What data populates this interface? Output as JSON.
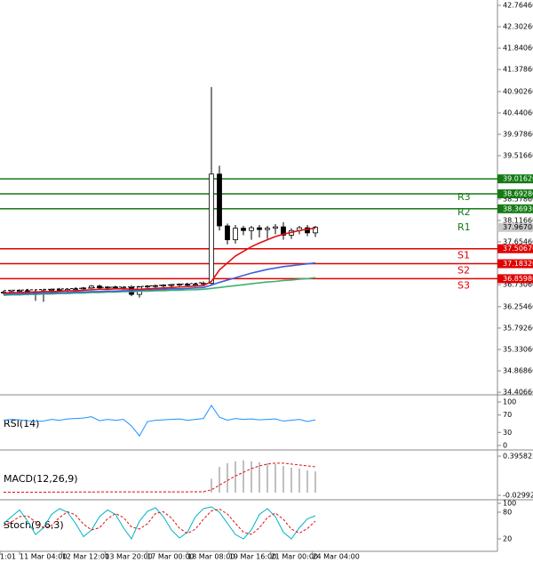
{
  "chart_data": [
    {
      "type": "candlestick",
      "open": [
        36.55,
        36.57,
        36.58,
        36.6,
        36.56,
        36.58,
        36.6,
        36.62,
        36.6,
        36.63,
        36.64,
        36.66,
        36.7,
        36.66,
        36.68,
        36.66,
        36.67,
        36.52,
        36.68,
        36.7,
        36.71,
        36.72,
        36.73,
        36.74,
        36.72,
        36.74,
        36.76,
        39.12,
        38.0,
        37.7,
        37.95,
        37.9,
        37.96,
        37.92,
        37.95,
        37.98,
        37.8,
        37.9,
        37.96,
        37.85
      ],
      "high": [
        36.6,
        36.62,
        36.63,
        36.64,
        36.62,
        36.64,
        36.65,
        36.66,
        36.65,
        36.67,
        36.68,
        36.72,
        36.73,
        36.7,
        36.71,
        36.7,
        36.72,
        36.7,
        36.72,
        36.73,
        36.74,
        36.75,
        36.76,
        36.77,
        36.76,
        36.8,
        41.0,
        39.3,
        38.05,
        38.02,
        38.0,
        38.0,
        38.02,
        38.0,
        38.04,
        38.08,
        37.95,
        38.0,
        38.02,
        38.0
      ],
      "low": [
        36.52,
        36.54,
        36.55,
        36.5,
        36.38,
        36.36,
        36.56,
        36.58,
        36.57,
        36.59,
        36.6,
        36.62,
        36.64,
        36.62,
        36.64,
        36.62,
        36.48,
        36.45,
        36.64,
        36.66,
        36.67,
        36.68,
        36.69,
        36.7,
        36.68,
        36.7,
        36.72,
        37.9,
        37.6,
        37.62,
        37.8,
        37.7,
        37.75,
        37.72,
        37.82,
        37.7,
        37.72,
        37.82,
        37.78,
        37.76
      ],
      "close": [
        36.57,
        36.58,
        36.6,
        36.56,
        36.58,
        36.6,
        36.62,
        36.6,
        36.63,
        36.64,
        36.66,
        36.7,
        36.66,
        36.68,
        36.66,
        36.67,
        36.52,
        36.68,
        36.7,
        36.71,
        36.72,
        36.73,
        36.74,
        36.72,
        36.74,
        36.76,
        39.12,
        38.0,
        37.7,
        37.95,
        37.9,
        37.96,
        37.92,
        37.95,
        37.98,
        37.8,
        37.9,
        37.96,
        37.85,
        37.97
      ],
      "series": [
        {
          "color": "#000000",
          "dashed": true,
          "values": [
            36.6,
            36.61,
            36.61,
            36.62,
            36.62,
            36.63,
            36.63,
            36.64,
            36.64,
            36.65,
            36.65,
            36.66,
            36.67,
            36.67,
            36.68,
            36.68,
            36.68,
            36.69,
            36.7,
            36.71,
            36.72,
            36.73,
            36.74,
            36.75,
            36.76,
            36.78,
            null,
            null,
            null,
            null,
            null,
            null,
            null,
            null,
            null,
            null,
            null,
            null,
            null,
            null
          ]
        },
        {
          "color": "#3cb371",
          "values": [
            36.5,
            36.51,
            36.51,
            36.52,
            36.52,
            36.53,
            36.53,
            36.54,
            36.54,
            36.55,
            36.55,
            36.56,
            36.56,
            36.57,
            36.57,
            36.58,
            36.58,
            36.59,
            36.59,
            36.6,
            36.6,
            36.61,
            36.61,
            36.62,
            36.62,
            36.63,
            36.65,
            36.67,
            36.69,
            36.71,
            36.73,
            36.75,
            36.77,
            36.79,
            36.8,
            36.82,
            36.83,
            36.85,
            36.86,
            36.88
          ]
        },
        {
          "color": "#3f5fd9",
          "values": [
            36.52,
            36.53,
            36.53,
            36.54,
            36.54,
            36.55,
            36.55,
            36.56,
            36.56,
            36.57,
            36.57,
            36.58,
            36.58,
            36.59,
            36.59,
            36.6,
            36.6,
            36.61,
            36.62,
            36.62,
            36.63,
            36.64,
            36.64,
            36.65,
            36.66,
            36.67,
            36.72,
            36.78,
            36.83,
            36.88,
            36.93,
            36.98,
            37.02,
            37.06,
            37.09,
            37.12,
            37.14,
            37.16,
            37.18,
            37.2
          ]
        },
        {
          "color": "#e01010",
          "values": [
            36.55,
            36.56,
            36.56,
            36.57,
            36.57,
            36.58,
            36.58,
            36.59,
            36.6,
            36.6,
            36.61,
            36.62,
            36.63,
            36.63,
            36.64,
            36.64,
            36.63,
            36.63,
            36.64,
            36.65,
            36.66,
            36.67,
            36.68,
            36.69,
            36.7,
            36.71,
            36.8,
            37.05,
            37.2,
            37.35,
            37.45,
            37.55,
            37.63,
            37.7,
            37.77,
            37.82,
            37.86,
            37.9,
            37.93,
            37.95
          ]
        }
      ],
      "levels": [
        {
          "name": "R3",
          "value": 39.0162,
          "color": "#157a15"
        },
        {
          "name": "R2",
          "value": 38.6928,
          "color": "#157a15"
        },
        {
          "name": "R1",
          "value": 38.3693,
          "color": "#157a15"
        },
        {
          "name": "S1",
          "value": 37.5067,
          "color": "#e00000"
        },
        {
          "name": "S2",
          "value": 37.1832,
          "color": "#e00000"
        },
        {
          "name": "S3",
          "value": 36.8598,
          "color": "#e00000"
        }
      ],
      "level_labels": [
        "39.01620",
        "38.69280",
        "38.36930",
        "37.50670",
        "37.18320",
        "36.85980"
      ],
      "last": 37.96708,
      "ylim": [
        34.37,
        42.88
      ],
      "yticks": [
        {
          "value": 42.7646,
          "label": "42.76460"
        },
        {
          "value": 42.3026,
          "label": "42.30260"
        },
        {
          "value": 41.8406,
          "label": "41.84060"
        },
        {
          "value": 41.3786,
          "label": "41.37860"
        },
        {
          "value": 40.9026,
          "label": "40.90260"
        },
        {
          "value": 40.4406,
          "label": "40.44060"
        },
        {
          "value": 39.9786,
          "label": "39.97860"
        },
        {
          "value": 39.5166,
          "label": "39.51660"
        },
        {
          "value": 38.5786,
          "label": "38.57860"
        },
        {
          "value": 38.1166,
          "label": "38.11660"
        },
        {
          "value": 37.6546,
          "label": "37.65460"
        },
        {
          "value": 36.7306,
          "label": "36.73060"
        },
        {
          "value": 36.2546,
          "label": "36.25460"
        },
        {
          "value": 35.7926,
          "label": "35.79260"
        },
        {
          "value": 35.3306,
          "label": "35.33060"
        },
        {
          "value": 34.8686,
          "label": "34.86860"
        },
        {
          "value": 34.4066,
          "label": "34.40660"
        }
      ],
      "xticks": [
        {
          "value": -0.44,
          "label": "1:01"
        },
        {
          "value": 2,
          "label": "11 Mar 04:00"
        },
        {
          "value": 7.3,
          "label": "12 Mar 12:00"
        },
        {
          "value": 12.7,
          "label": "13 Mar 20:00"
        },
        {
          "value": 17.9,
          "label": "17 Mar 00:00"
        },
        {
          "value": 23,
          "label": "18 Mar 08:00"
        },
        {
          "value": 28.2,
          "label": "19 Mar 16:00"
        },
        {
          "value": 33.4,
          "label": "21 Mar 00:00"
        },
        {
          "value": 38.6,
          "label": "24 Mar 04:00"
        }
      ]
    },
    {
      "type": "line",
      "title": "RSI(14)",
      "series": [
        {
          "color": "#1e90ff",
          "values": [
            58,
            60,
            59,
            57,
            55,
            56,
            60,
            58,
            61,
            62,
            63,
            66,
            57,
            60,
            58,
            60,
            45,
            22,
            55,
            58,
            59,
            60,
            61,
            58,
            60,
            62,
            92,
            65,
            58,
            62,
            60,
            61,
            59,
            60,
            61,
            56,
            58,
            60,
            55,
            59
          ]
        }
      ],
      "ylim": [
        -8.2,
        110.2
      ],
      "yticks": [
        100,
        70,
        30,
        0
      ]
    },
    {
      "type": "macd",
      "title": "MACD(12,26,9)",
      "values": [
        0.004,
        0.004,
        0.005,
        0.004,
        0.004,
        0.005,
        0.005,
        0.006,
        0.006,
        0.006,
        0.007,
        0.008,
        0.007,
        0.007,
        0.007,
        0.007,
        0.005,
        0.006,
        0.007,
        0.007,
        0.008,
        0.008,
        0.009,
        0.009,
        0.009,
        0.01,
        0.15,
        0.28,
        0.32,
        0.34,
        0.35,
        0.34,
        0.33,
        0.32,
        0.31,
        0.29,
        0.27,
        0.26,
        0.24,
        0.23
      ],
      "series": [
        {
          "color": "#e01010",
          "dashed": true,
          "values": [
            0.004,
            0.004,
            0.004,
            0.004,
            0.004,
            0.004,
            0.005,
            0.005,
            0.005,
            0.006,
            0.006,
            0.006,
            0.007,
            0.007,
            0.007,
            0.007,
            0.007,
            0.007,
            0.007,
            0.007,
            0.007,
            0.008,
            0.008,
            0.008,
            0.009,
            0.009,
            0.03,
            0.08,
            0.13,
            0.18,
            0.22,
            0.26,
            0.29,
            0.31,
            0.32,
            0.32,
            0.31,
            0.3,
            0.29,
            0.28
          ]
        }
      ],
      "ylim": [
        -0.0687,
        0.4345
      ],
      "yticks": [
        0.395822,
        -0.029929
      ]
    },
    {
      "type": "stochastic",
      "title": "Stoch(9,6,3)",
      "series": [
        {
          "color": "#00b3c6",
          "values": [
            55,
            70,
            85,
            60,
            30,
            45,
            75,
            88,
            80,
            55,
            25,
            40,
            70,
            85,
            75,
            45,
            20,
            60,
            82,
            90,
            70,
            40,
            22,
            35,
            70,
            88,
            92,
            80,
            55,
            30,
            20,
            40,
            75,
            88,
            70,
            35,
            20,
            45,
            65,
            72
          ]
        },
        {
          "color": "#e01010",
          "dashed": true,
          "values": [
            50,
            58,
            70,
            72,
            58,
            45,
            50,
            68,
            81,
            74,
            53,
            40,
            45,
            65,
            77,
            68,
            47,
            42,
            54,
            77,
            81,
            67,
            44,
            32,
            42,
            64,
            83,
            87,
            76,
            55,
            35,
            30,
            45,
            68,
            78,
            64,
            42,
            33,
            43,
            60
          ]
        }
      ],
      "ylim": [
        -8,
        102
      ],
      "yticks": [
        100,
        80,
        20
      ]
    }
  ]
}
